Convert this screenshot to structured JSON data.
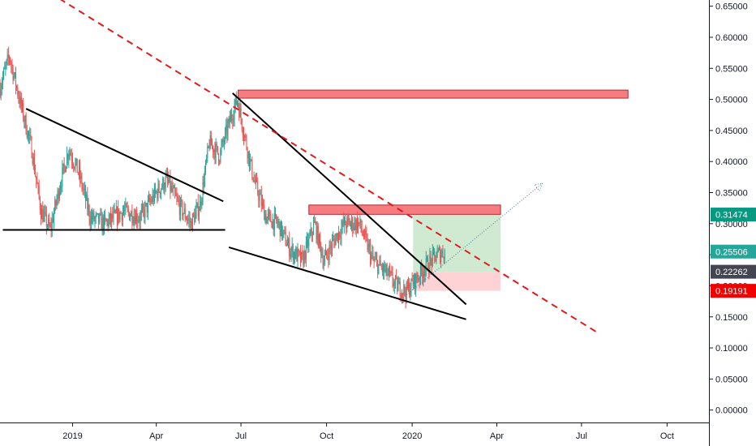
{
  "chart_data": {
    "type": "candlestick",
    "title": "",
    "xlabel": "",
    "ylabel": "",
    "x_ticks": [
      {
        "date": "2019-01-01",
        "label": "2019"
      },
      {
        "date": "2019-04-01",
        "label": "Apr"
      },
      {
        "date": "2019-07-01",
        "label": "Jul"
      },
      {
        "date": "2019-10-01",
        "label": "Oct"
      },
      {
        "date": "2020-01-01",
        "label": "2020"
      },
      {
        "date": "2020-04-01",
        "label": "Apr"
      },
      {
        "date": "2020-07-01",
        "label": "Jul"
      },
      {
        "date": "2020-10-01",
        "label": "Oct"
      }
    ],
    "y_ticks": [
      "0.00000",
      "0.05000",
      "0.10000",
      "0.15000",
      "0.20000",
      "0.25000",
      "0.30000",
      "0.35000",
      "0.40000",
      "0.45000",
      "0.50000",
      "0.55000",
      "0.60000",
      "0.65000"
    ],
    "xlim": [
      "2018-10-15",
      "2020-11-15"
    ],
    "ylim": [
      -0.02,
      0.66
    ],
    "grid": false,
    "legend": "none",
    "price_tags": [
      {
        "label": "0.31474",
        "value": 0.31474,
        "color": "#089981"
      },
      {
        "label": "0.25506",
        "value": 0.25506,
        "color": "#26a69a"
      },
      {
        "label": "0.22262",
        "value": 0.22262,
        "color": "#434651"
      },
      {
        "label": "0.19191",
        "value": 0.19191,
        "color": "#f20000"
      }
    ],
    "colors": {
      "up": "#26a69a",
      "down": "#ef5350",
      "resistance_fill": "#f77c80",
      "resistance_border": "#b22833",
      "target_zone": "#c8e6c9",
      "stop_zone": "#ffcdd2",
      "trendline": "#000000",
      "dashed_trend": "#e3191c",
      "projection": "#4a7aa0"
    },
    "price_anchors": [
      [
        "2018-10-15",
        0.52
      ],
      [
        "2018-10-25",
        0.57
      ],
      [
        "2018-11-05",
        0.5
      ],
      [
        "2018-11-18",
        0.42
      ],
      [
        "2018-11-28",
        0.32
      ],
      [
        "2018-12-08",
        0.29
      ],
      [
        "2018-12-18",
        0.36
      ],
      [
        "2018-12-28",
        0.42
      ],
      [
        "2019-01-08",
        0.38
      ],
      [
        "2019-01-20",
        0.31
      ],
      [
        "2019-02-05",
        0.3
      ],
      [
        "2019-02-25",
        0.32
      ],
      [
        "2019-03-15",
        0.31
      ],
      [
        "2019-04-01",
        0.35
      ],
      [
        "2019-04-12",
        0.37
      ],
      [
        "2019-04-25",
        0.33
      ],
      [
        "2019-05-08",
        0.3
      ],
      [
        "2019-05-18",
        0.33
      ],
      [
        "2019-05-28",
        0.43
      ],
      [
        "2019-06-08",
        0.41
      ],
      [
        "2019-06-20",
        0.47
      ],
      [
        "2019-06-27",
        0.5
      ],
      [
        "2019-07-05",
        0.44
      ],
      [
        "2019-07-15",
        0.37
      ],
      [
        "2019-07-28",
        0.31
      ],
      [
        "2019-08-10",
        0.3
      ],
      [
        "2019-08-22",
        0.26
      ],
      [
        "2019-09-05",
        0.24
      ],
      [
        "2019-09-18",
        0.3
      ],
      [
        "2019-09-28",
        0.24
      ],
      [
        "2019-10-08",
        0.27
      ],
      [
        "2019-10-20",
        0.3
      ],
      [
        "2019-11-05",
        0.3
      ],
      [
        "2019-11-20",
        0.24
      ],
      [
        "2019-12-05",
        0.22
      ],
      [
        "2019-12-15",
        0.2
      ],
      [
        "2019-12-25",
        0.19
      ],
      [
        "2020-01-05",
        0.21
      ],
      [
        "2020-01-15",
        0.23
      ],
      [
        "2020-01-28",
        0.25
      ],
      [
        "2020-02-05",
        0.255
      ]
    ],
    "drawings": {
      "resistance_zones": [
        {
          "x1": "2019-06-28",
          "x2": "2020-08-20",
          "y1": 0.502,
          "y2": 0.515
        },
        {
          "x1": "2019-09-12",
          "x2": "2020-04-05",
          "y1": 0.315,
          "y2": 0.33
        }
      ],
      "target_zone": {
        "x1": "2020-01-02",
        "x2": "2020-04-05",
        "y1": 0.2226,
        "y2": 0.3147
      },
      "stop_zone": {
        "x1": "2020-01-02",
        "x2": "2020-04-05",
        "y1": 0.1919,
        "y2": 0.2226
      },
      "trendlines": [
        {
          "x1": "2018-11-12",
          "y1": 0.485,
          "x2": "2019-06-12",
          "y2": 0.336
        },
        {
          "x1": "2018-10-18",
          "y1": 0.29,
          "x2": "2019-06-14",
          "y2": 0.29
        },
        {
          "x1": "2019-06-22",
          "y1": 0.51,
          "x2": "2020-02-28",
          "y2": 0.17
        },
        {
          "x1": "2019-06-18",
          "y1": 0.262,
          "x2": "2020-02-28",
          "y2": 0.146
        }
      ],
      "dashed_trendline": {
        "x1": "2018-12-18",
        "y1": 0.662,
        "x2": "2020-07-20",
        "y2": 0.123
      },
      "projection": {
        "x1": "2019-12-20",
        "y1": 0.178,
        "x2": "2020-05-20",
        "y2": 0.365
      }
    }
  }
}
